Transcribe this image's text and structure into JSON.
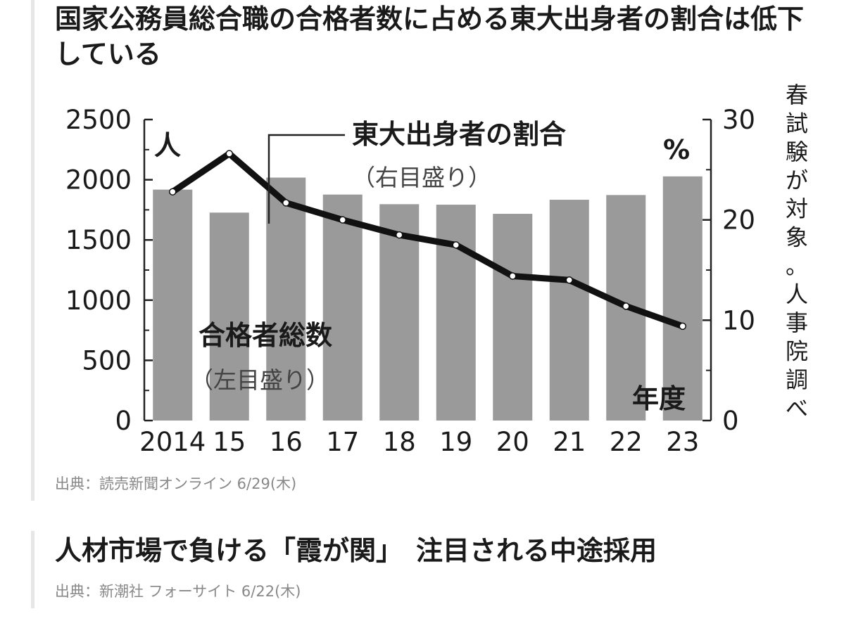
{
  "article1": {
    "headline": "国家公務員総合職の合格者数に占める東大出身者の割合は低下している",
    "source": "出典：読売新聞オンライン 6/29(木)"
  },
  "article2": {
    "headline": "人材市場で負ける「霞が関」　注目される中途採用",
    "source": "出典：新潮社 フォーサイト 6/22(木)"
  },
  "chart_data": {
    "type": "bar",
    "categories": [
      "2014",
      "15",
      "16",
      "17",
      "18",
      "19",
      "20",
      "21",
      "22",
      "23"
    ],
    "series": [
      {
        "name": "合格者総数",
        "name_paren": "（左目盛り）",
        "kind": "bar",
        "axis": "left",
        "values": [
          1918,
          1727,
          2018,
          1877,
          1797,
          1793,
          1717,
          1834,
          1873,
          2028
        ],
        "color": "#9a9a9a"
      },
      {
        "name": "東大出身者の割合",
        "name_paren": "（右目盛り）",
        "kind": "line",
        "axis": "right",
        "values": [
          22.8,
          26.6,
          21.7,
          20.0,
          18.5,
          17.5,
          14.4,
          14.0,
          11.4,
          9.4
        ],
        "color": "#111111"
      }
    ],
    "left_axis": {
      "unit": "人",
      "ticks": [
        "0",
        "500",
        "1000",
        "1500",
        "2000",
        "2500"
      ],
      "ylim": [
        0,
        2500
      ]
    },
    "right_axis": {
      "unit": "%",
      "ticks": [
        "0",
        "10",
        "20",
        "30"
      ],
      "ylim": [
        0,
        30
      ]
    },
    "xlabel": "年度",
    "side_note": "春試験が対象。人事院調べ",
    "grid": false
  }
}
